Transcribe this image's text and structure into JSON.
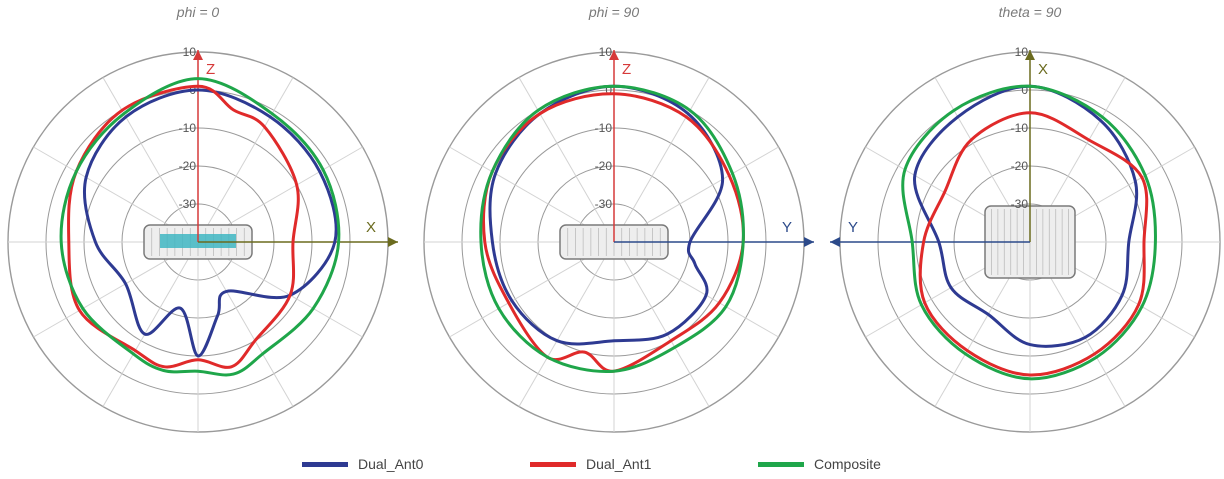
{
  "colors": {
    "ant0": "#2e3a92",
    "ant1": "#e02a2a",
    "composite": "#1fa64a"
  },
  "chart_data": [
    {
      "type": "polar",
      "title": "phi = 0",
      "radial_ticks": [
        "10",
        "0",
        "-10",
        "-20",
        "-30"
      ],
      "rlim": [
        -40,
        10
      ],
      "axes": [
        {
          "label": "Z",
          "direction": "up",
          "color": "#d63a3a"
        },
        {
          "label": "X",
          "direction": "right",
          "color": "#6b6b1f"
        }
      ],
      "series": [
        {
          "name": "Dual_Ant0",
          "color": "#2e3a92",
          "angles": [
            0,
            30,
            60,
            90,
            120,
            150,
            165,
            180,
            195,
            210,
            240,
            270,
            300,
            330
          ],
          "values": [
            0,
            -2,
            -3,
            -4,
            -12,
            -25,
            -20,
            -10,
            -22,
            -12,
            -18,
            -13,
            -6,
            -2
          ]
        },
        {
          "name": "Dual_Ant1",
          "color": "#e02a2a",
          "angles": [
            0,
            15,
            30,
            60,
            90,
            120,
            150,
            165,
            180,
            195,
            210,
            240,
            270,
            300,
            330
          ],
          "values": [
            1,
            -4,
            -5,
            -10,
            -15,
            -12,
            -10,
            -6,
            -9,
            -6,
            -7,
            -4,
            -6,
            -3,
            0
          ]
        },
        {
          "name": "Composite",
          "color": "#1fa64a",
          "angles": [
            0,
            30,
            60,
            90,
            120,
            150,
            165,
            180,
            195,
            210,
            240,
            270,
            300,
            330
          ],
          "values": [
            3,
            -1,
            -2,
            -3,
            -5,
            -6,
            -4,
            -6,
            -5,
            -6,
            -5,
            -4,
            -3,
            -1
          ]
        }
      ]
    },
    {
      "type": "polar",
      "title": "phi = 90",
      "radial_ticks": [
        "10",
        "0",
        "-10",
        "-20",
        "-30"
      ],
      "rlim": [
        -40,
        10
      ],
      "axes": [
        {
          "label": "Z",
          "direction": "up",
          "color": "#d63a3a"
        },
        {
          "label": "Y",
          "direction": "right",
          "color": "#2c4a8a"
        }
      ],
      "series": [
        {
          "name": "Dual_Ant0",
          "color": "#2e3a92",
          "angles": [
            0,
            30,
            60,
            90,
            105,
            120,
            150,
            180,
            210,
            240,
            270,
            300,
            330
          ],
          "values": [
            1,
            -1,
            -7,
            -20,
            -18,
            -12,
            -12,
            -14,
            -10,
            -9,
            -8,
            -4,
            -1
          ]
        },
        {
          "name": "Dual_Ant1",
          "color": "#e02a2a",
          "angles": [
            0,
            30,
            60,
            90,
            120,
            150,
            180,
            195,
            210,
            240,
            270,
            300,
            330
          ],
          "values": [
            -1,
            -2,
            -5,
            -6,
            -8,
            -10,
            -6,
            -10,
            -5,
            -8,
            -6,
            -3,
            -1
          ]
        },
        {
          "name": "Composite",
          "color": "#1fa64a",
          "angles": [
            0,
            30,
            60,
            90,
            120,
            150,
            180,
            210,
            240,
            270,
            300,
            330
          ],
          "values": [
            1,
            0,
            -4,
            -6,
            -6,
            -8,
            -6,
            -5,
            -5,
            -5,
            -3,
            0
          ]
        }
      ]
    },
    {
      "type": "polar",
      "title": "theta = 90",
      "radial_ticks": [
        "10",
        "0",
        "-10",
        "-20",
        "-30"
      ],
      "rlim": [
        -40,
        10
      ],
      "axes": [
        {
          "label": "X",
          "direction": "up",
          "color": "#6b6b1f"
        },
        {
          "label": "Y",
          "direction": "left",
          "color": "#2c4a8a"
        }
      ],
      "series": [
        {
          "name": "Dual_Ant0",
          "color": "#2e3a92",
          "angles": [
            0,
            30,
            60,
            90,
            120,
            150,
            180,
            210,
            240,
            270,
            300,
            330
          ],
          "values": [
            1,
            -3,
            -8,
            -14,
            -12,
            -11,
            -13,
            -18,
            -16,
            -16,
            -5,
            -2
          ]
        },
        {
          "name": "Dual_Ant1",
          "color": "#e02a2a",
          "angles": [
            0,
            30,
            60,
            90,
            120,
            150,
            180,
            210,
            240,
            270,
            300,
            330
          ],
          "values": [
            -6,
            -9,
            -6,
            -10,
            -7,
            -6,
            -5,
            -7,
            -8,
            -12,
            -14,
            -9
          ]
        },
        {
          "name": "Composite",
          "color": "#1fa64a",
          "angles": [
            0,
            30,
            60,
            90,
            120,
            150,
            180,
            210,
            240,
            270,
            300,
            330
          ],
          "values": [
            1,
            -2,
            -5,
            -7,
            -6,
            -5,
            -4,
            -6,
            -7,
            -9,
            -2,
            0
          ]
        }
      ]
    }
  ],
  "legend": [
    {
      "label": "Dual_Ant0",
      "color": "#2e3a92"
    },
    {
      "label": "Dual_Ant1",
      "color": "#e02a2a"
    },
    {
      "label": "Composite",
      "color": "#1fa64a"
    }
  ]
}
